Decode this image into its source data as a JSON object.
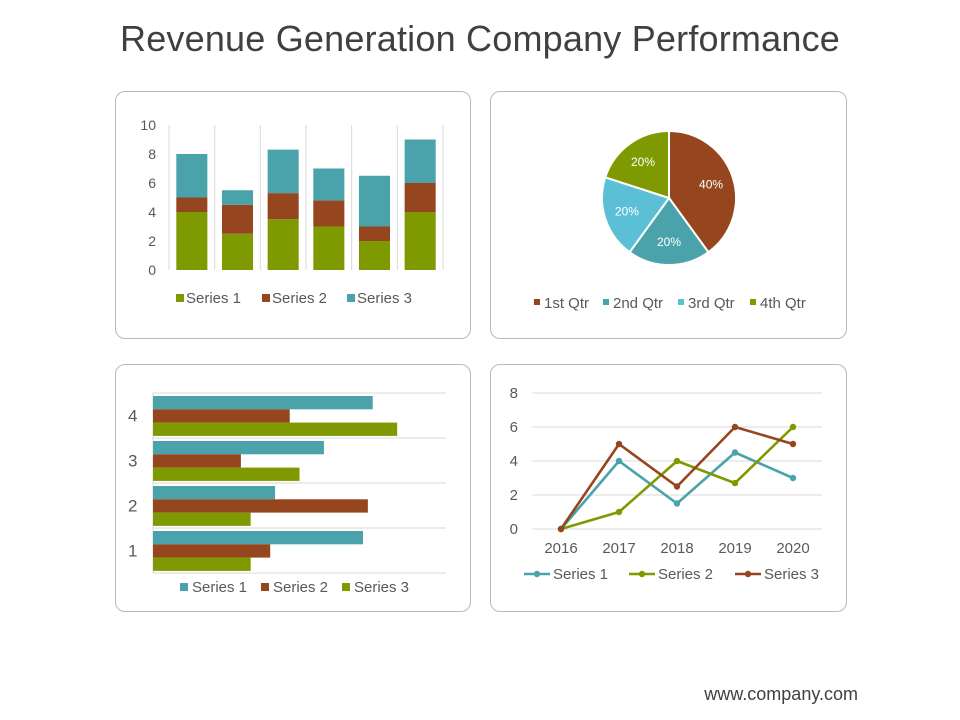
{
  "page": {
    "title": "Revenue Generation Company Performance",
    "footer": "www.company.com"
  },
  "chart_data": [
    {
      "type": "bar",
      "stacked": true,
      "orientation": "vertical",
      "categories": [
        "",
        "",
        "",
        "",
        "",
        ""
      ],
      "series": [
        {
          "name": "Series 1",
          "color": "#7f9a00",
          "values": [
            4,
            2.5,
            3.5,
            3,
            2,
            4
          ]
        },
        {
          "name": "Series 2",
          "color": "#96461e",
          "values": [
            1,
            2,
            1.8,
            1.8,
            1,
            2
          ]
        },
        {
          "name": "Series 3",
          "color": "#4aa3aa",
          "values": [
            3,
            1,
            3,
            2.2,
            3.5,
            3
          ]
        }
      ],
      "yticks": [
        "0",
        "2",
        "4",
        "6",
        "8",
        "10"
      ],
      "ylim": [
        0,
        10
      ],
      "grid": "vertical",
      "legend": "bottom"
    },
    {
      "type": "pie",
      "categories": [
        "1st Qtr",
        "2nd Qtr",
        "3rd Qtr",
        "4th Qtr"
      ],
      "values": [
        40,
        20,
        20,
        20
      ],
      "labels": [
        "40%",
        "20%",
        "20%",
        "20%"
      ],
      "colors": [
        "#96461e",
        "#4aa3aa",
        "#5bbfd6",
        "#7f9a00"
      ],
      "legend": "bottom"
    },
    {
      "type": "bar",
      "orientation": "horizontal",
      "categories": [
        "1",
        "2",
        "3",
        "4"
      ],
      "series": [
        {
          "name": "Series 3",
          "color": "#7f9a00",
          "values": [
            2,
            2,
            3,
            5
          ]
        },
        {
          "name": "Series 2",
          "color": "#96461e",
          "values": [
            2.4,
            4.4,
            1.8,
            2.8
          ]
        },
        {
          "name": "Series 1",
          "color": "#4aa3aa",
          "values": [
            4.3,
            2.5,
            3.5,
            4.5
          ]
        }
      ],
      "xlim": [
        0,
        6
      ],
      "grid": "horizontal",
      "legend": "bottom"
    },
    {
      "type": "line",
      "x": [
        "2016",
        "2017",
        "2018",
        "2019",
        "2020"
      ],
      "series": [
        {
          "name": "Series 1",
          "color": "#4aa3aa",
          "values": [
            0,
            4,
            1.5,
            4.5,
            3
          ]
        },
        {
          "name": "Series 2",
          "color": "#7f9a00",
          "values": [
            0,
            1,
            4,
            2.7,
            6
          ]
        },
        {
          "name": "Series 3",
          "color": "#96461e",
          "values": [
            0,
            5,
            2.5,
            6,
            5
          ]
        }
      ],
      "yticks": [
        "0",
        "2",
        "4",
        "6",
        "8"
      ],
      "ylim": [
        0,
        8
      ],
      "grid": "horizontal",
      "legend": "bottom"
    }
  ]
}
